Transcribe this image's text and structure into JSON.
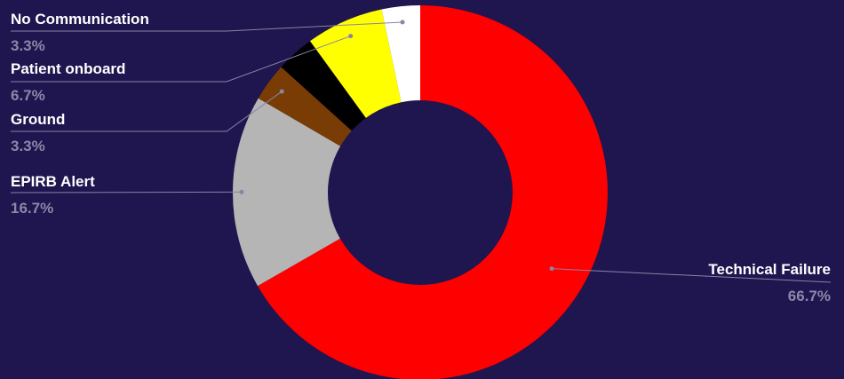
{
  "chart_data": {
    "type": "pie",
    "donut": true,
    "slices": [
      {
        "label": "Technical Failure",
        "value": 66.7,
        "value_label": "66.7%",
        "color": "#ff0000"
      },
      {
        "label": "EPIRB Alert",
        "value": 16.7,
        "value_label": "16.7%",
        "color": "#b5b5b5"
      },
      {
        "label": "Ground",
        "value": 3.3,
        "value_label": "3.3%",
        "color": "#7a3c05"
      },
      {
        "label": "",
        "value": 3.3,
        "value_label": "",
        "color": "#000000"
      },
      {
        "label": "Patient onboard",
        "value": 6.7,
        "value_label": "6.7%",
        "color": "#ffff00"
      },
      {
        "label": "No Communication",
        "value": 3.3,
        "value_label": "3.3%",
        "color": "#ffffff"
      }
    ],
    "legend": "none"
  }
}
